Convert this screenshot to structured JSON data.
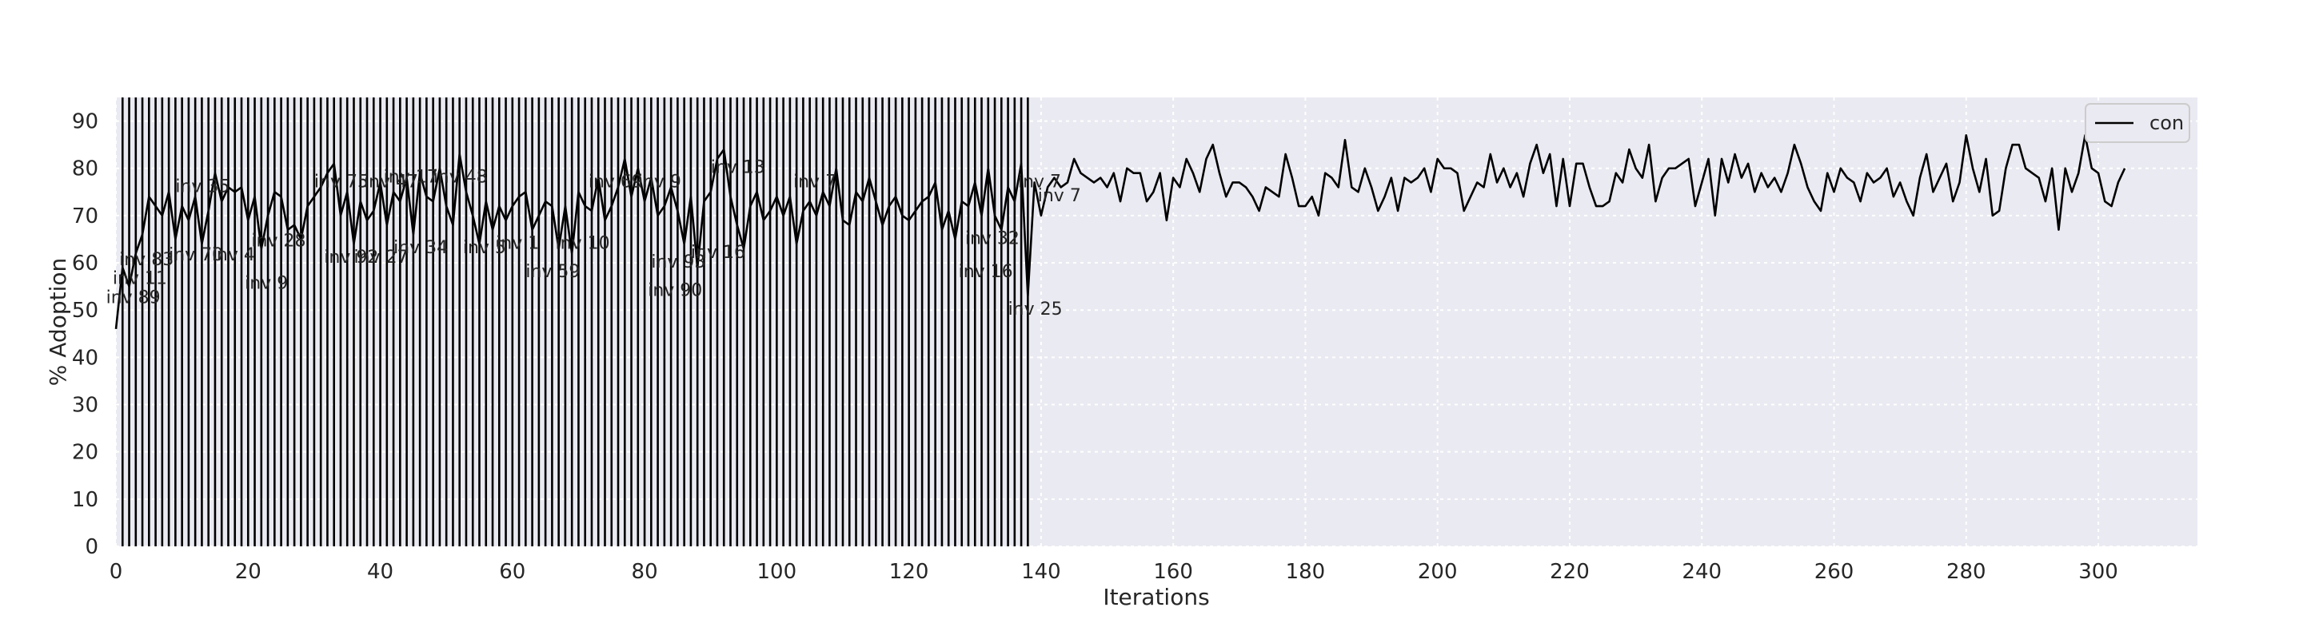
{
  "chart_data": {
    "type": "line",
    "title": "",
    "xlabel": "Iterations",
    "ylabel": "% Adoption",
    "xlim": [
      0,
      315
    ],
    "ylim": [
      0,
      95
    ],
    "xticks": [
      0,
      20,
      40,
      60,
      80,
      100,
      120,
      140,
      160,
      180,
      200,
      220,
      240,
      260,
      280,
      300
    ],
    "yticks": [
      0,
      10,
      20,
      30,
      40,
      50,
      60,
      70,
      80,
      90
    ],
    "grid": true,
    "background": "#eaeaf2",
    "line_color": "#000000",
    "legend": {
      "position": "top-right",
      "entries": [
        "con"
      ]
    },
    "series": [
      {
        "name": "con",
        "x_start": 0,
        "values": [
          46,
          59,
          55,
          62,
          66,
          74,
          72,
          70,
          75,
          65,
          72,
          69,
          74,
          64,
          71,
          79,
          73,
          76,
          75,
          76,
          69,
          74,
          63,
          70,
          75,
          74,
          67,
          68,
          65,
          72,
          74,
          76,
          79,
          81,
          70,
          75,
          64,
          73,
          69,
          71,
          77,
          68,
          75,
          73,
          78,
          66,
          79,
          74,
          73,
          80,
          72,
          68,
          83,
          75,
          70,
          64,
          73,
          67,
          72,
          69,
          72,
          74,
          75,
          67,
          70,
          73,
          72,
          63,
          72,
          62,
          75,
          72,
          71,
          78,
          69,
          72,
          76,
          82,
          74,
          80,
          73,
          78,
          70,
          72,
          76,
          71,
          64,
          74,
          59,
          73,
          75,
          82,
          84,
          74,
          68,
          63,
          72,
          75,
          69,
          71,
          74,
          70,
          74,
          64,
          71,
          73,
          70,
          75,
          72,
          80,
          69,
          68,
          75,
          73,
          78,
          73,
          68,
          72,
          74,
          70,
          69,
          71,
          73,
          74,
          77,
          67,
          71,
          65,
          73,
          72,
          77,
          70,
          80,
          70,
          67,
          76,
          73,
          81,
          53,
          77,
          70,
          76,
          78,
          76,
          77,
          82,
          79,
          78,
          77,
          78,
          76,
          79,
          73,
          80,
          79,
          79,
          73,
          75,
          79,
          69,
          78,
          76,
          82,
          79,
          75,
          82,
          85,
          79,
          74,
          77,
          77,
          76,
          74,
          71,
          76,
          75,
          74,
          83,
          78,
          72,
          72,
          74,
          70,
          79,
          78,
          76,
          86,
          76,
          75,
          80,
          76,
          71,
          74,
          78,
          71,
          78,
          77,
          78,
          80,
          75,
          82,
          80,
          80,
          79,
          71,
          74,
          77,
          76,
          83,
          77,
          80,
          76,
          79,
          74,
          81,
          85,
          79,
          83,
          72,
          82,
          72,
          81,
          81,
          76,
          72,
          72,
          73,
          79,
          77,
          84,
          80,
          78,
          85,
          73,
          78,
          80,
          80,
          81,
          82,
          72,
          77,
          82,
          70,
          82,
          77,
          83,
          78,
          81,
          75,
          79,
          76,
          78,
          75,
          79,
          85,
          81,
          76,
          73,
          71,
          79,
          75,
          80,
          78,
          77,
          73,
          79,
          77,
          78,
          80,
          74,
          77,
          73,
          70,
          78,
          83,
          75,
          78,
          81,
          73,
          77,
          87,
          80,
          75,
          82,
          70,
          71,
          80,
          85,
          85,
          80,
          79,
          78,
          73,
          80,
          67,
          80,
          75,
          79,
          87,
          80,
          79,
          73,
          72,
          77,
          80
        ]
      }
    ],
    "vlines_x_range": [
      1,
      138
    ],
    "vlines_color": "#000000",
    "annotations": [
      {
        "text": "inv 89",
        "x": -1.5,
        "y": 51.5
      },
      {
        "text": "inv 11",
        "x": -0.5,
        "y": 55.5
      },
      {
        "text": "inv 83",
        "x": 0.5,
        "y": 59.5
      },
      {
        "text": "inv 9",
        "x": 19.5,
        "y": 54.5
      },
      {
        "text": "inv 70",
        "x": 8,
        "y": 60.5
      },
      {
        "text": "inv 4",
        "x": 14.5,
        "y": 60.5
      },
      {
        "text": "inv 28",
        "x": 20.5,
        "y": 63.5
      },
      {
        "text": "inv 35",
        "x": 9,
        "y": 75
      },
      {
        "text": "inv 75",
        "x": 30,
        "y": 76
      },
      {
        "text": "inv 47",
        "x": 37.5,
        "y": 76
      },
      {
        "text": "inv 17",
        "x": 40.5,
        "y": 77
      },
      {
        "text": "inv 48",
        "x": 48,
        "y": 77
      },
      {
        "text": "inv 92",
        "x": 31.5,
        "y": 60
      },
      {
        "text": "inv 27",
        "x": 36,
        "y": 60
      },
      {
        "text": "inv 34",
        "x": 42,
        "y": 62
      },
      {
        "text": "inv 5",
        "x": 52.5,
        "y": 62
      },
      {
        "text": "inv 1",
        "x": 57.5,
        "y": 63
      },
      {
        "text": "inv 59",
        "x": 62,
        "y": 57
      },
      {
        "text": "inv 10",
        "x": 66.5,
        "y": 63
      },
      {
        "text": "inv 69",
        "x": 71.5,
        "y": 76
      },
      {
        "text": "inv 9",
        "x": 79,
        "y": 76
      },
      {
        "text": "inv 90",
        "x": 80.5,
        "y": 53
      },
      {
        "text": "inv 93",
        "x": 81,
        "y": 59
      },
      {
        "text": "inv 16",
        "x": 87,
        "y": 61
      },
      {
        "text": "inv 13",
        "x": 90,
        "y": 79
      },
      {
        "text": "inv 7",
        "x": 102.5,
        "y": 76
      },
      {
        "text": "inv 16",
        "x": 127.5,
        "y": 57
      },
      {
        "text": "inv 32",
        "x": 128.5,
        "y": 64
      },
      {
        "text": "inv 25",
        "x": 135,
        "y": 49
      },
      {
        "text": "inv 7",
        "x": 136.5,
        "y": 76
      },
      {
        "text": "inv 7",
        "x": 139.5,
        "y": 73
      }
    ]
  }
}
